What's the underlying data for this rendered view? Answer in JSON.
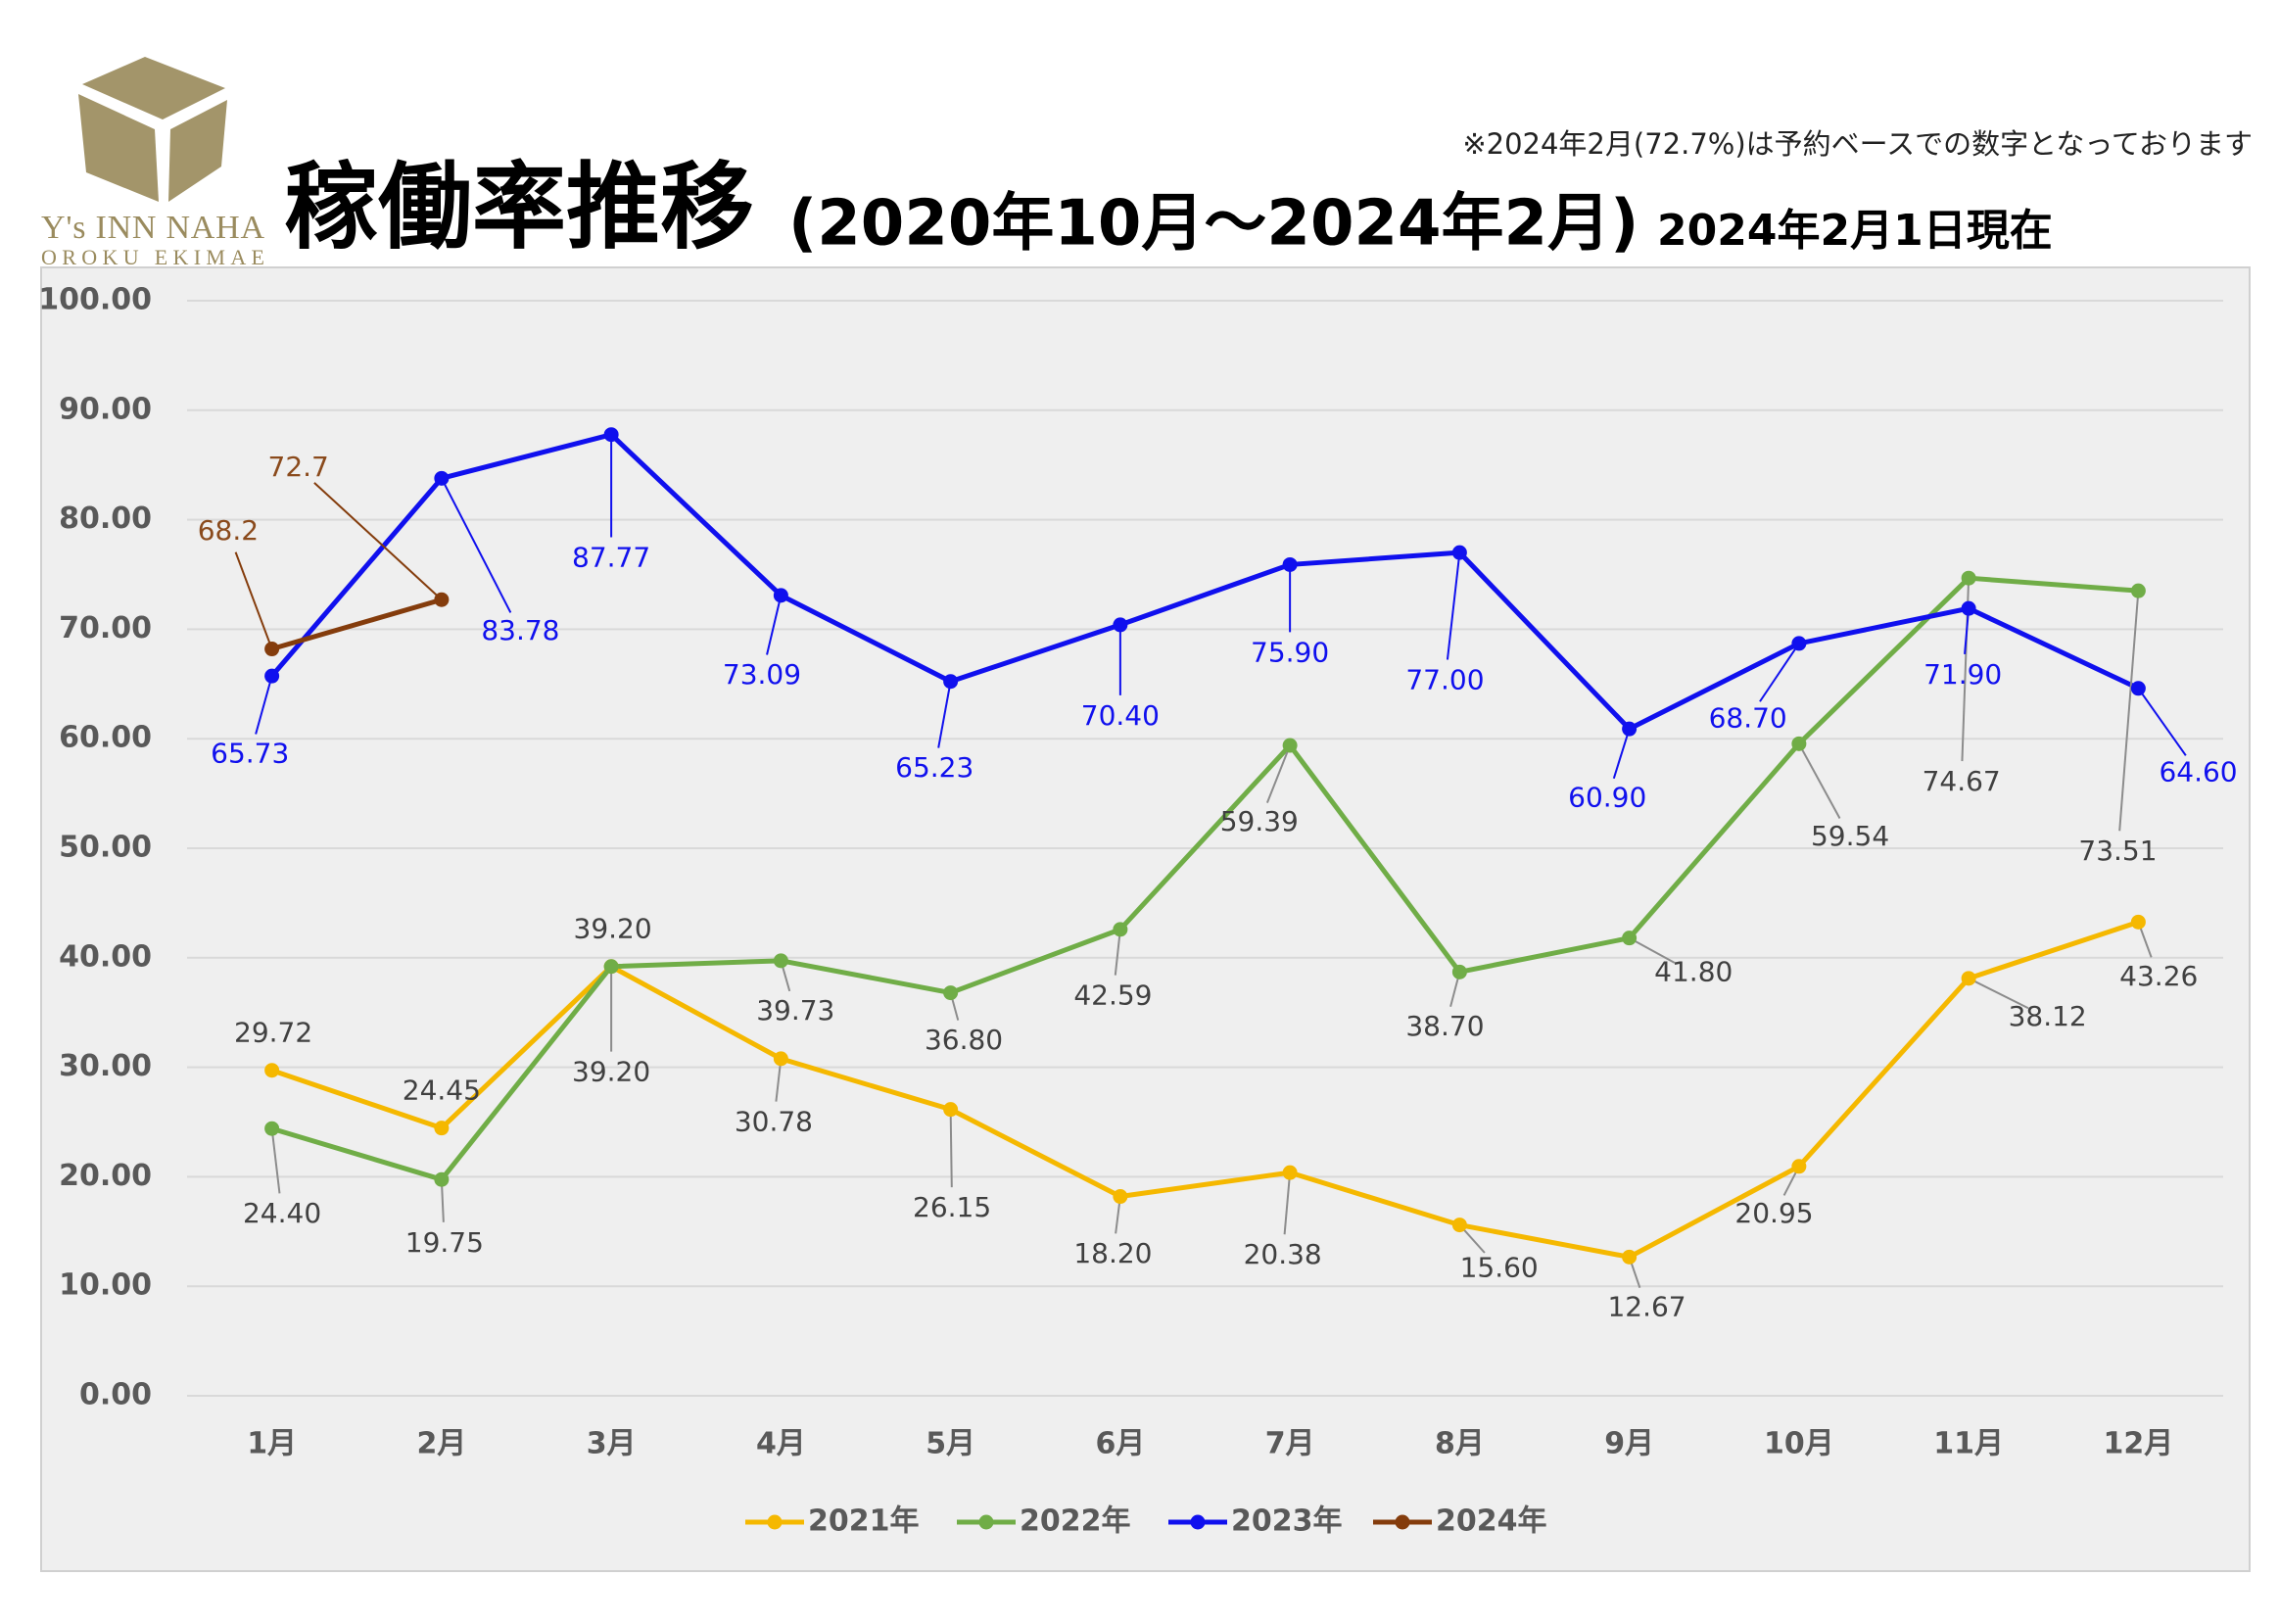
{
  "logo": {
    "name": "Y's INN NAHA",
    "sub": "OROKU EKIMAE"
  },
  "note": "※2024年2月(72.7%)は予約ベースでの数字となっております",
  "chart_data": {
    "type": "line",
    "title": "稼働率推移",
    "title_period": "(2020年10月～2024年2月)",
    "subtitle": "2024年2月1日現在",
    "categories": [
      "1月",
      "2月",
      "3月",
      "4月",
      "5月",
      "6月",
      "7月",
      "8月",
      "9月",
      "10月",
      "11月",
      "12月"
    ],
    "ylim": [
      0,
      100
    ],
    "yticks": [
      {
        "value": 0,
        "label": "0.00"
      },
      {
        "value": 10,
        "label": "10.00"
      },
      {
        "value": 20,
        "label": "20.00"
      },
      {
        "value": 30,
        "label": "30.00"
      },
      {
        "value": 40,
        "label": "40.00"
      },
      {
        "value": 50,
        "label": "50.00"
      },
      {
        "value": 60,
        "label": "60.00"
      },
      {
        "value": 70,
        "label": "70.00"
      },
      {
        "value": 80,
        "label": "80.00"
      },
      {
        "value": 90,
        "label": "90.00"
      },
      {
        "value": 100,
        "label": "100.00"
      }
    ],
    "grid": true,
    "legend": "bottom",
    "series": [
      {
        "name": "2021年",
        "color": "#f5b800",
        "values": [
          29.72,
          24.45,
          39.2,
          30.78,
          26.15,
          18.2,
          20.38,
          15.6,
          12.67,
          20.95,
          38.12,
          43.26
        ],
        "value_labels": [
          "29.72",
          "24.45",
          "39.20",
          "30.78",
          "26.15",
          "18.20",
          "20.38",
          "15.60",
          "12.67",
          "20.95",
          "38.12",
          "43.26"
        ]
      },
      {
        "name": "2022年",
        "color": "#70ad47",
        "values": [
          24.4,
          19.75,
          39.2,
          39.73,
          36.8,
          42.59,
          59.39,
          38.7,
          41.8,
          59.54,
          74.67,
          73.51
        ],
        "value_labels": [
          "24.40",
          "19.75",
          "39.20",
          "39.73",
          "36.80",
          "42.59",
          "59.39",
          "38.70",
          "41.80",
          "59.54",
          "74.67",
          "73.51"
        ]
      },
      {
        "name": "2023年",
        "color": "#1010ee",
        "values": [
          65.73,
          83.78,
          87.77,
          73.09,
          65.23,
          70.4,
          75.9,
          77.0,
          60.9,
          68.7,
          71.9,
          64.6
        ],
        "value_labels": [
          "65.73",
          "83.78",
          "87.77",
          "73.09",
          "65.23",
          "70.40",
          "75.90",
          "77.00",
          "60.90",
          "68.70",
          "71.90",
          "64.60"
        ]
      },
      {
        "name": "2024年",
        "color": "#843c0c",
        "values": [
          68.2,
          72.7,
          null,
          null,
          null,
          null,
          null,
          null,
          null,
          null,
          null,
          null
        ],
        "value_labels": [
          "68.2",
          "72.7",
          null,
          null,
          null,
          null,
          null,
          null,
          null,
          null,
          null,
          null
        ]
      }
    ]
  }
}
